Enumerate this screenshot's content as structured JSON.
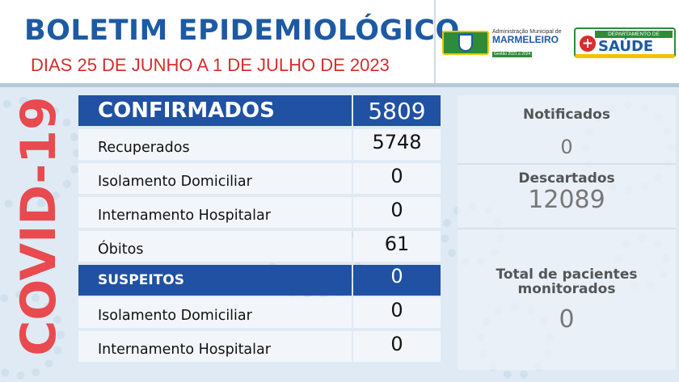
{
  "header": {
    "title": "BOLETIM EPIDEMIOLÓGICO",
    "subtitle": "DIAS 25 DE JUNHO A 1 DE JULHO DE 2023"
  },
  "logos": {
    "municipal": {
      "line1": "Administração Municipal de",
      "name": "MARMELEIRO",
      "gestao": "Gestão 2021 a 2024"
    },
    "saude": {
      "dept": "DEPARTAMENTO DE",
      "name": "SAÚDE"
    }
  },
  "side_label": "COVID-19",
  "table": {
    "rows": [
      {
        "label": "CONFIRMADOS",
        "value": "5809"
      },
      {
        "label": "Recuperados",
        "value": "5748"
      },
      {
        "label": "Isolamento Domiciliar",
        "value": "0"
      },
      {
        "label": "Internamento Hospitalar",
        "value": "0"
      },
      {
        "label": "Óbitos",
        "value": "61"
      },
      {
        "label": "SUSPEITOS",
        "value": "0"
      },
      {
        "label": "Isolamento Domiciliar",
        "value": "0"
      },
      {
        "label": "Internamento Hospitalar",
        "value": "0"
      }
    ]
  },
  "panel": {
    "notificados_label": "Notificados",
    "notificados_value": "0",
    "descartados_label": "Descartados",
    "descartados_value": "12089",
    "monitorados_label_1": "Total de pacientes",
    "monitorados_label_2": "monitorados",
    "monitorados_value": "0"
  },
  "colors": {
    "title_blue": "#1d5aa3",
    "subtitle_red": "#d62d2d",
    "header_row_blue": "#2051a3",
    "covid_red": "#e84a4f"
  }
}
